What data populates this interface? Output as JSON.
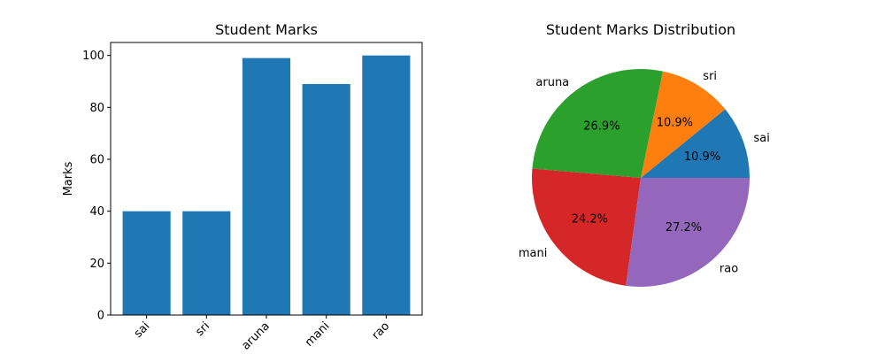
{
  "chart_data": [
    {
      "type": "bar",
      "title": "Student Marks",
      "xlabel": "",
      "ylabel": "Marks",
      "categories": [
        "sai",
        "sri",
        "aruna",
        "mani",
        "rao"
      ],
      "values": [
        40,
        40,
        99,
        89,
        100
      ],
      "ylim": [
        0,
        105
      ],
      "yticks": [
        0,
        20,
        40,
        60,
        80,
        100
      ],
      "bar_color": "#1f77b4",
      "xtick_rotation": 45,
      "grid": false
    },
    {
      "type": "pie",
      "title": "Student Marks Distribution",
      "labels": [
        "sai",
        "sri",
        "aruna",
        "mani",
        "rao"
      ],
      "values": [
        40,
        40,
        99,
        89,
        100
      ],
      "percent_labels": [
        "10.9%",
        "10.9%",
        "26.9%",
        "24.2%",
        "27.2%"
      ],
      "colors": [
        "#1f77b4",
        "#ff7f0e",
        "#2ca02c",
        "#d62728",
        "#9467bd"
      ],
      "start_angle": 0,
      "direction": "counterclockwise"
    }
  ]
}
